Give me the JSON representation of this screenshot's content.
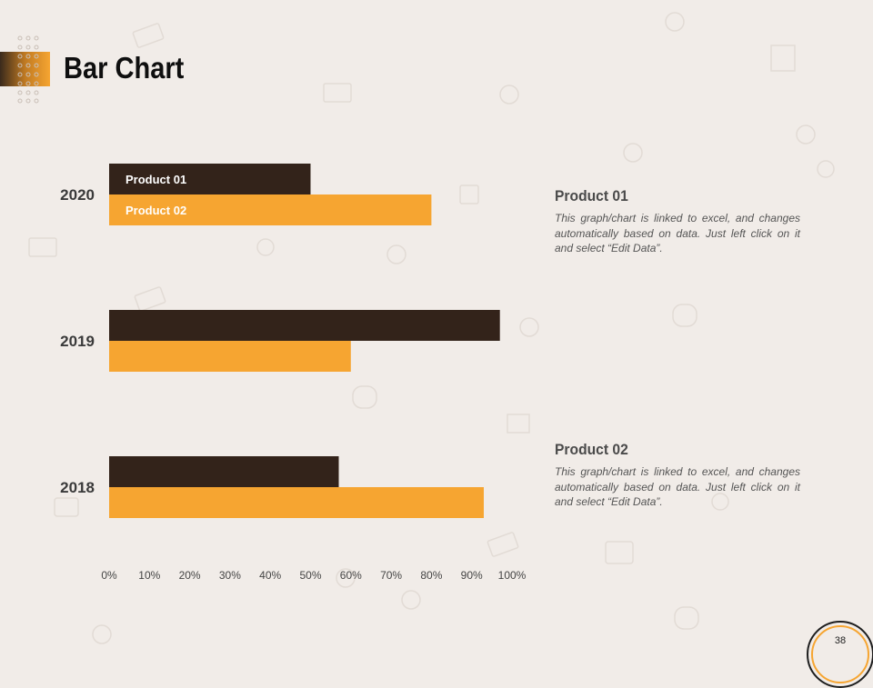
{
  "page": {
    "title": "Bar Chart",
    "page_number": "38"
  },
  "colors": {
    "product_01": "#33231a",
    "product_02": "#f6a531",
    "background": "#f1ece8"
  },
  "chart_data": {
    "type": "bar",
    "orientation": "horizontal",
    "categories": [
      "2020",
      "2019",
      "2018"
    ],
    "series": [
      {
        "name": "Product 01",
        "values": [
          0.5,
          0.97,
          0.57
        ]
      },
      {
        "name": "Product 02",
        "values": [
          0.8,
          0.6,
          0.93
        ]
      }
    ],
    "xlim": [
      0,
      1
    ],
    "x_ticks": [
      "0%",
      "10%",
      "20%",
      "30%",
      "40%",
      "50%",
      "60%",
      "70%",
      "80%",
      "90%",
      "100%"
    ],
    "grid": false,
    "legend": "inside-bars-2020"
  },
  "notes": [
    {
      "title": "Product 01",
      "text": "This graph/chart is linked to excel, and changes automatically based on data. Just left click on it and select “Edit Data”."
    },
    {
      "title": "Product 02",
      "text": "This graph/chart is linked to excel, and changes automatically based on data. Just left click on it and select “Edit Data”."
    }
  ]
}
